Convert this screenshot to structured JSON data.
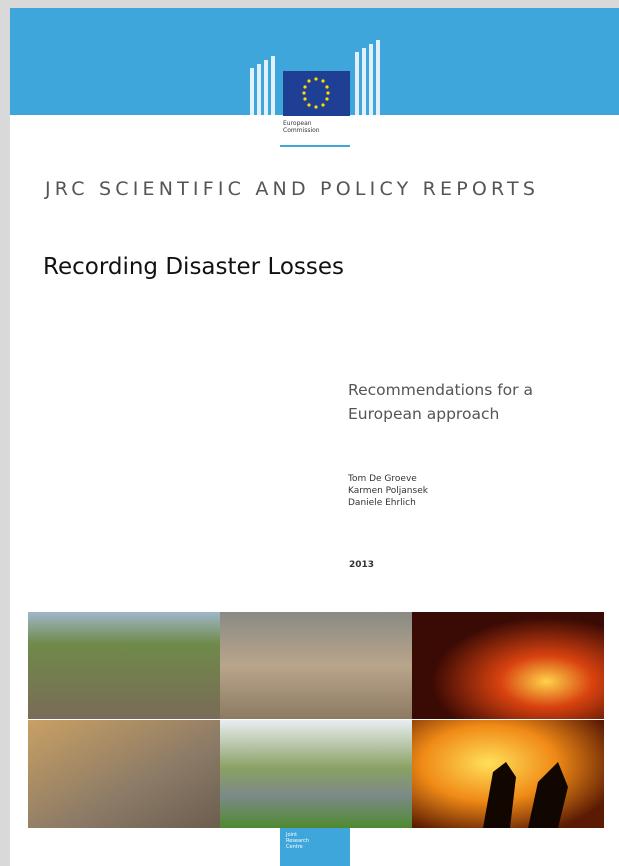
{
  "header": {
    "logo_text": [
      "European",
      "Commission"
    ]
  },
  "series_title": "JRC SCIENTIFIC AND POLICY REPORTS",
  "title": "Recording Disaster Losses",
  "subtitle": [
    "Recommendations for a",
    "European approach"
  ],
  "authors": [
    "Tom De Groeve",
    "Karmen Poljansek",
    "Daniele Ehrlich"
  ],
  "year": "2013",
  "footer": {
    "logo_text": [
      "Joint",
      "Research",
      "Centre"
    ]
  }
}
